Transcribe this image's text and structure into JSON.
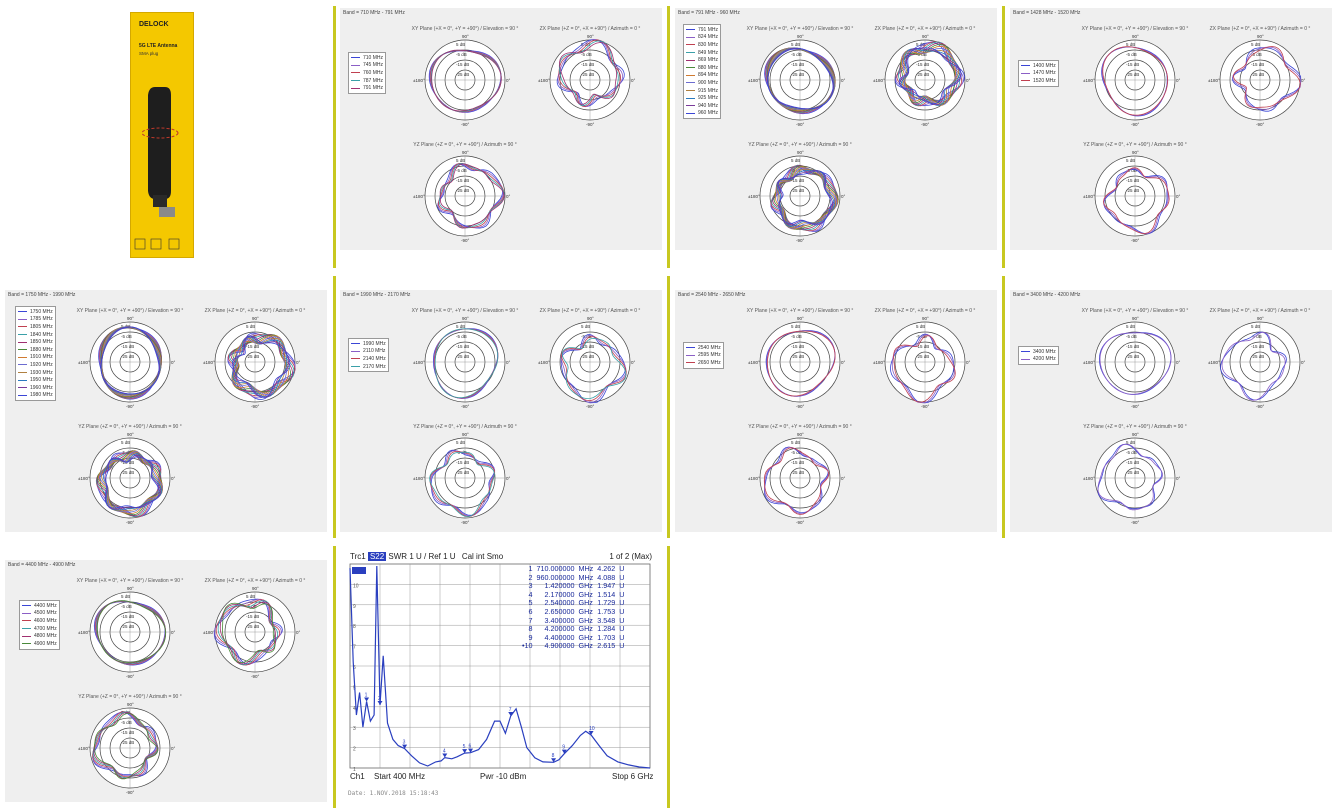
{
  "product": {
    "brand": "DELOCK",
    "name": "5G LTE Antenna",
    "connector": "SMA plug",
    "colors": {
      "box": "#f4c800",
      "antenna": "#1e1e1e"
    }
  },
  "colors": {
    "series": [
      "#3b46d6",
      "#8b5fc6",
      "#c04050",
      "#3aa0a8",
      "#a03070",
      "#4a8a3a",
      "#d07a30",
      "#6c6cd0",
      "#b08040",
      "#2a7ac0",
      "#7a3a9a"
    ],
    "vna_trace": "#2a3fbf",
    "separator": "#c8c820"
  },
  "chart_data": [
    {
      "type": "polar",
      "band": "Band = 710 MHz - 791 MHz",
      "series": [
        "710 MHz",
        "745 MHz",
        "760 MHz",
        "787 MHz",
        "791 MHz"
      ],
      "plots": {
        "xy": "XY Plane (+X = 0°, +Y = +90°) / Elevation = 90 °",
        "zx": "ZX Plane (+Z = 0°, +X = +90°) / Azimuth = 0 °",
        "yz": "YZ Plane (+Z = 0°, +Y = +90°) / Azimuth = 90 °"
      },
      "rings": [
        "5 dB",
        "-5 dB",
        "-15 dB",
        "-25 dB"
      ],
      "angles": [
        "90°",
        "0°",
        "-90°",
        "±180°"
      ]
    },
    {
      "type": "polar",
      "band": "Band = 791 MHz - 960 MHz",
      "series": [
        "791 MHz",
        "824 MHz",
        "830 MHz",
        "849 MHz",
        "869 MHz",
        "880 MHz",
        "894 MHz",
        "900 MHz",
        "915 MHz",
        "925 MHz",
        "940 MHz",
        "960 MHz"
      ],
      "plots": {
        "xy": "XY Plane (+X = 0°, +Y = +90°) / Elevation = 90 °",
        "zx": "ZX Plane (+Z = 0°, +X = +90°) / Azimuth = 0 °",
        "yz": "YZ Plane (+Z = 0°, +Y = +90°) / Azimuth = 90 °"
      },
      "rings": [
        "5 dB",
        "-5 dB",
        "-15 dB",
        "-25 dB"
      ],
      "angles": [
        "90°",
        "0°",
        "-90°",
        "±180°"
      ]
    },
    {
      "type": "polar",
      "band": "Band = 1428 MHz - 1520 MHz",
      "series": [
        "1400 MHz",
        "1470 MHz",
        "1520 MHz"
      ],
      "plots": {
        "xy": "XY Plane (+X = 0°, +Y = +90°) / Elevation = 90 °",
        "zx": "ZX Plane (+Z = 0°, +X = +90°) / Azimuth = 0 °",
        "yz": "YZ Plane (+Z = 0°, +Y = +90°) / Azimuth = 90 °"
      },
      "rings": [
        "5 dB",
        "-5 dB",
        "-15 dB",
        "-25 dB"
      ],
      "angles": [
        "90°",
        "0°",
        "-90°",
        "±180°"
      ]
    },
    {
      "type": "polar",
      "band": "Band = 1750 MHz - 1990 MHz",
      "series": [
        "1750 MHz",
        "1785 MHz",
        "1805 MHz",
        "1840 MHz",
        "1850 MHz",
        "1880 MHz",
        "1910 MHz",
        "1920 MHz",
        "1930 MHz",
        "1950 MHz",
        "1960 MHz",
        "1980 MHz"
      ],
      "plots": {
        "xy": "XY Plane (+X = 0°, +Y = +90°) / Elevation = 90 °",
        "zx": "ZX Plane (+Z = 0°, +X = +90°) / Azimuth = 0 °",
        "yz": "YZ Plane (+Z = 0°, +Y = +90°) / Azimuth = 90 °"
      },
      "rings": [
        "5 dB",
        "-5 dB",
        "-15 dB",
        "-25 dB"
      ],
      "angles": [
        "90°",
        "0°",
        "-90°",
        "±180°"
      ]
    },
    {
      "type": "polar",
      "band": "Band = 1990 MHz - 2170 MHz",
      "series": [
        "1990 MHz",
        "2110 MHz",
        "2140 MHz",
        "2170 MHz"
      ],
      "plots": {
        "xy": "XY Plane (+X = 0°, +Y = +90°) / Elevation = 90 °",
        "zx": "ZX Plane (+Z = 0°, +X = +90°) / Azimuth = 0 °",
        "yz": "YZ Plane (+Z = 0°, +Y = +90°) / Azimuth = 90 °"
      },
      "rings": [
        "5 dB",
        "-5 dB",
        "-15 dB",
        "-25 dB"
      ],
      "angles": [
        "90°",
        "0°",
        "-90°",
        "±180°"
      ]
    },
    {
      "type": "polar",
      "band": "Band = 2540 MHz - 2650 MHz",
      "series": [
        "2540 MHz",
        "2595 MHz",
        "2650 MHz"
      ],
      "plots": {
        "xy": "XY Plane (+X = 0°, +Y = +90°) / Elevation = 90 °",
        "zx": "ZX Plane (+Z = 0°, +X = +90°) / Azimuth = 0 °",
        "yz": "YZ Plane (+Z = 0°, +Y = +90°) / Azimuth = 90 °"
      },
      "rings": [
        "5 dB",
        "-5 dB",
        "-15 dB",
        "-25 dB"
      ],
      "angles": [
        "90°",
        "0°",
        "-90°",
        "±180°"
      ]
    },
    {
      "type": "polar",
      "band": "Band = 3400 MHz - 4200 MHz",
      "series": [
        "3400 MHz",
        "4200 MHz"
      ],
      "plots": {
        "xy": "XY Plane (+X = 0°, +Y = +90°) / Elevation = 90 °",
        "zx": "ZX Plane (+Z = 0°, +X = +90°) / Azimuth = 0 °",
        "yz": "YZ Plane (+Z = 0°, +Y = +90°) / Azimuth = 90 °"
      },
      "rings": [
        "5 dB",
        "-5 dB",
        "-15 dB",
        "-25 dB"
      ],
      "angles": [
        "90°",
        "0°",
        "-90°",
        "±180°"
      ]
    },
    {
      "type": "polar",
      "band": "Band = 4400 MHz - 4900 MHz",
      "series": [
        "4400 MHz",
        "4500 MHz",
        "4600 MHz",
        "4700 MHz",
        "4800 MHz",
        "4900 MHz"
      ],
      "plots": {
        "xy": "XY Plane (+X = 0°, +Y = +90°) / Elevation = 90 °",
        "zx": "ZX Plane (+Z = 0°, +X = +90°) / Azimuth = 0 °",
        "yz": "YZ Plane (+Z = 0°, +Y = +90°) / Azimuth = 90 °"
      },
      "rings": [
        "5 dB",
        "-5 dB",
        "-15 dB",
        "-25 dB"
      ],
      "angles": [
        "90°",
        "0°",
        "-90°",
        "±180°"
      ]
    },
    {
      "type": "line",
      "header": {
        "trace": "Trc1",
        "param": "S22",
        "format": "SWR",
        "scale": "1 U /",
        "ref": "Ref 1 U",
        "cal": "Cal int Smo",
        "page": "1 of 2 (Max)"
      },
      "footer": {
        "channel": "Ch1",
        "start": "Start  400 MHz",
        "power": "Pwr  -10 dBm",
        "stop": "Stop  6 GHz",
        "date": "Date: 1.NOV.2018   15:18:43"
      },
      "xlim_mhz": [
        400,
        6000
      ],
      "ylim": [
        1,
        11
      ],
      "y_ticks": [
        "1",
        "2",
        "3",
        "4",
        "5",
        "6",
        "7",
        "8",
        "9",
        "10"
      ],
      "markers": [
        {
          "n": "1",
          "freq": "710.000000",
          "unit": "MHz",
          "swr": "4.262",
          "u": "U",
          "f_mhz": 710,
          "v": 4.262
        },
        {
          "n": "2",
          "freq": "960.000000",
          "unit": "MHz",
          "swr": "4.088",
          "u": "U",
          "f_mhz": 960,
          "v": 4.088
        },
        {
          "n": "3",
          "freq": "1.420000",
          "unit": "GHz",
          "swr": "1.947",
          "u": "U",
          "f_mhz": 1420,
          "v": 1.947
        },
        {
          "n": "4",
          "freq": "2.170000",
          "unit": "GHz",
          "swr": "1.514",
          "u": "U",
          "f_mhz": 2170,
          "v": 1.514
        },
        {
          "n": "5",
          "freq": "2.540000",
          "unit": "GHz",
          "swr": "1.729",
          "u": "U",
          "f_mhz": 2540,
          "v": 1.729
        },
        {
          "n": "6",
          "freq": "2.650000",
          "unit": "GHz",
          "swr": "1.753",
          "u": "U",
          "f_mhz": 2650,
          "v": 1.753
        },
        {
          "n": "7",
          "freq": "3.400000",
          "unit": "GHz",
          "swr": "3.548",
          "u": "U",
          "f_mhz": 3400,
          "v": 3.548
        },
        {
          "n": "8",
          "freq": "4.200000",
          "unit": "GHz",
          "swr": "1.284",
          "u": "U",
          "f_mhz": 4200,
          "v": 1.284
        },
        {
          "n": "9",
          "freq": "4.400000",
          "unit": "GHz",
          "swr": "1.703",
          "u": "U",
          "f_mhz": 4400,
          "v": 1.703
        },
        {
          "n": "•10",
          "freq": "4.900000",
          "unit": "GHz",
          "swr": "2.615",
          "u": "U",
          "f_mhz": 4900,
          "v": 2.615
        }
      ],
      "trace_points": [
        [
          400,
          10.8
        ],
        [
          460,
          6.2
        ],
        [
          520,
          3.6
        ],
        [
          580,
          4.7
        ],
        [
          640,
          3.0
        ],
        [
          710,
          4.26
        ],
        [
          780,
          3.3
        ],
        [
          850,
          3.6
        ],
        [
          900,
          10.9
        ],
        [
          960,
          4.09
        ],
        [
          1020,
          6.5
        ],
        [
          1100,
          3.2
        ],
        [
          1200,
          2.4
        ],
        [
          1300,
          2.1
        ],
        [
          1420,
          1.95
        ],
        [
          1550,
          1.6
        ],
        [
          1700,
          1.25
        ],
        [
          1850,
          1.1
        ],
        [
          2000,
          1.3
        ],
        [
          2100,
          1.35
        ],
        [
          2170,
          1.51
        ],
        [
          2300,
          1.45
        ],
        [
          2400,
          1.55
        ],
        [
          2540,
          1.73
        ],
        [
          2650,
          1.75
        ],
        [
          2800,
          1.9
        ],
        [
          2950,
          2.4
        ],
        [
          3100,
          3.3
        ],
        [
          3200,
          3.3
        ],
        [
          3300,
          2.7
        ],
        [
          3400,
          3.55
        ],
        [
          3500,
          3.9
        ],
        [
          3600,
          3.0
        ],
        [
          3700,
          2.0
        ],
        [
          3850,
          1.5
        ],
        [
          4000,
          1.3
        ],
        [
          4200,
          1.28
        ],
        [
          4300,
          1.4
        ],
        [
          4400,
          1.7
        ],
        [
          4550,
          2.1
        ],
        [
          4700,
          2.6
        ],
        [
          4800,
          2.8
        ],
        [
          4900,
          2.62
        ],
        [
          5050,
          2.1
        ],
        [
          5200,
          1.6
        ],
        [
          5400,
          1.3
        ],
        [
          5600,
          1.15
        ],
        [
          5800,
          1.05
        ],
        [
          6000,
          1.0
        ]
      ]
    }
  ]
}
